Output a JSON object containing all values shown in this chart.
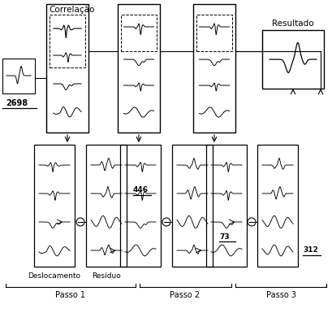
{
  "title_corr": "Correlação",
  "title_result": "Resultado",
  "label_desl": "Deslocamento",
  "label_resid": "Resíduo",
  "label_2698": "2698",
  "label_446": "446",
  "label_73": "73",
  "label_312": "312",
  "passo_labels": [
    "Passo 1",
    "Passo 2",
    "Passo 3"
  ],
  "bg_color": "#ffffff"
}
